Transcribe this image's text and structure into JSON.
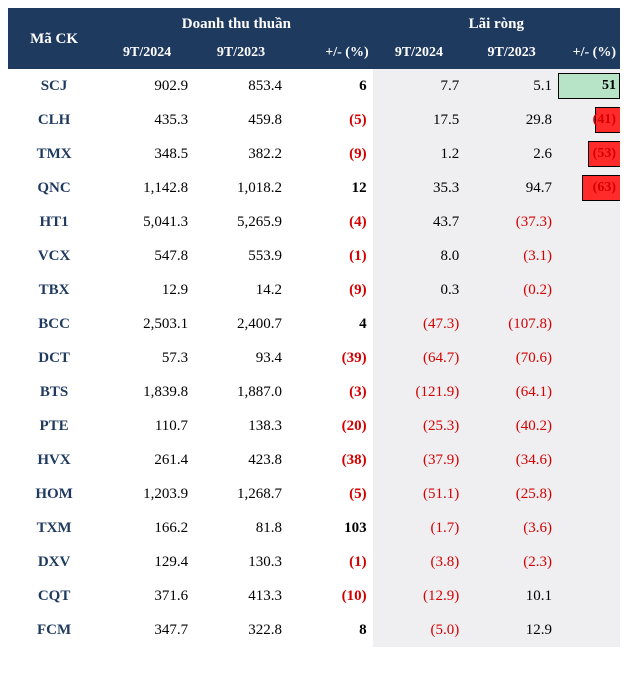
{
  "columns": {
    "ticker": "Mã CK",
    "revenue_group": "Doanh thu thuần",
    "profit_group": "Lãi ròng",
    "p2024": "9T/2024",
    "p2023": "9T/2023",
    "change": "+/- (%)"
  },
  "colors": {
    "header_bg": "#1f3a5f",
    "header_text": "#ffffff",
    "shade_bg": "#efeff2",
    "negative": "#d40000",
    "ticker": "#1f3a5f",
    "neg_bar": "#ff2b2b",
    "pos_bar": "#b7e4c7"
  },
  "rows": [
    {
      "ticker": "SCJ",
      "rev2024": "902.9",
      "rev2023": "853.4",
      "rev_chg": "6",
      "rev_chg_neg": false,
      "prof2024": "7.7",
      "prof2023": "5.1",
      "prof_chg": "51",
      "prof_chg_neg": false,
      "bar_pct": 100,
      "show_bar": true
    },
    {
      "ticker": "CLH",
      "rev2024": "435.3",
      "rev2023": "459.8",
      "rev_chg": "(5)",
      "rev_chg_neg": true,
      "prof2024": "17.5",
      "prof2023": "29.8",
      "prof_chg": "(41)",
      "prof_chg_neg": true,
      "bar_pct": 41,
      "show_bar": true
    },
    {
      "ticker": "TMX",
      "rev2024": "348.5",
      "rev2023": "382.2",
      "rev_chg": "(9)",
      "rev_chg_neg": true,
      "prof2024": "1.2",
      "prof2023": "2.6",
      "prof_chg": "(53)",
      "prof_chg_neg": true,
      "bar_pct": 53,
      "show_bar": true
    },
    {
      "ticker": "QNC",
      "rev2024": "1,142.8",
      "rev2023": "1,018.2",
      "rev_chg": "12",
      "rev_chg_neg": false,
      "prof2024": "35.3",
      "prof2023": "94.7",
      "prof_chg": "(63)",
      "prof_chg_neg": true,
      "bar_pct": 63,
      "show_bar": true
    },
    {
      "ticker": "HT1",
      "rev2024": "5,041.3",
      "rev2023": "5,265.9",
      "rev_chg": "(4)",
      "rev_chg_neg": true,
      "prof2024": "43.7",
      "prof2023": "(37.3)",
      "prof2023_neg": true,
      "prof_chg": "",
      "show_bar": false
    },
    {
      "ticker": "VCX",
      "rev2024": "547.8",
      "rev2023": "553.9",
      "rev_chg": "(1)",
      "rev_chg_neg": true,
      "prof2024": "8.0",
      "prof2023": "(3.1)",
      "prof2023_neg": true,
      "prof_chg": "",
      "show_bar": false
    },
    {
      "ticker": "TBX",
      "rev2024": "12.9",
      "rev2023": "14.2",
      "rev_chg": "(9)",
      "rev_chg_neg": true,
      "prof2024": "0.3",
      "prof2023": "(0.2)",
      "prof2023_neg": true,
      "prof_chg": "",
      "show_bar": false
    },
    {
      "ticker": "BCC",
      "rev2024": "2,503.1",
      "rev2023": "2,400.7",
      "rev_chg": "4",
      "rev_chg_neg": false,
      "prof2024": "(47.3)",
      "prof2024_neg": true,
      "prof2023": "(107.8)",
      "prof2023_neg": true,
      "prof_chg": "",
      "show_bar": false
    },
    {
      "ticker": "DCT",
      "rev2024": "57.3",
      "rev2023": "93.4",
      "rev_chg": "(39)",
      "rev_chg_neg": true,
      "prof2024": "(64.7)",
      "prof2024_neg": true,
      "prof2023": "(70.6)",
      "prof2023_neg": true,
      "prof_chg": "",
      "show_bar": false
    },
    {
      "ticker": "BTS",
      "rev2024": "1,839.8",
      "rev2023": "1,887.0",
      "rev_chg": "(3)",
      "rev_chg_neg": true,
      "prof2024": "(121.9)",
      "prof2024_neg": true,
      "prof2023": "(64.1)",
      "prof2023_neg": true,
      "prof_chg": "",
      "show_bar": false
    },
    {
      "ticker": "PTE",
      "rev2024": "110.7",
      "rev2023": "138.3",
      "rev_chg": "(20)",
      "rev_chg_neg": true,
      "prof2024": "(25.3)",
      "prof2024_neg": true,
      "prof2023": "(40.2)",
      "prof2023_neg": true,
      "prof_chg": "",
      "show_bar": false
    },
    {
      "ticker": "HVX",
      "rev2024": "261.4",
      "rev2023": "423.8",
      "rev_chg": "(38)",
      "rev_chg_neg": true,
      "prof2024": "(37.9)",
      "prof2024_neg": true,
      "prof2023": "(34.6)",
      "prof2023_neg": true,
      "prof_chg": "",
      "show_bar": false
    },
    {
      "ticker": "HOM",
      "rev2024": "1,203.9",
      "rev2023": "1,268.7",
      "rev_chg": "(5)",
      "rev_chg_neg": true,
      "prof2024": "(51.1)",
      "prof2024_neg": true,
      "prof2023": "(25.8)",
      "prof2023_neg": true,
      "prof_chg": "",
      "show_bar": false
    },
    {
      "ticker": "TXM",
      "rev2024": "166.2",
      "rev2023": "81.8",
      "rev_chg": "103",
      "rev_chg_neg": false,
      "prof2024": "(1.7)",
      "prof2024_neg": true,
      "prof2023": "(3.6)",
      "prof2023_neg": true,
      "prof_chg": "",
      "show_bar": false
    },
    {
      "ticker": "DXV",
      "rev2024": "129.4",
      "rev2023": "130.3",
      "rev_chg": "(1)",
      "rev_chg_neg": true,
      "prof2024": "(3.8)",
      "prof2024_neg": true,
      "prof2023": "(2.3)",
      "prof2023_neg": true,
      "prof_chg": "",
      "show_bar": false
    },
    {
      "ticker": "CQT",
      "rev2024": "371.6",
      "rev2023": "413.3",
      "rev_chg": "(10)",
      "rev_chg_neg": true,
      "prof2024": "(12.9)",
      "prof2024_neg": true,
      "prof2023": "10.1",
      "prof_chg": "",
      "show_bar": false
    },
    {
      "ticker": "FCM",
      "rev2024": "347.7",
      "rev2023": "322.8",
      "rev_chg": "8",
      "rev_chg_neg": false,
      "prof2024": "(5.0)",
      "prof2024_neg": true,
      "prof2023": "12.9",
      "prof_chg": "",
      "show_bar": false
    }
  ]
}
